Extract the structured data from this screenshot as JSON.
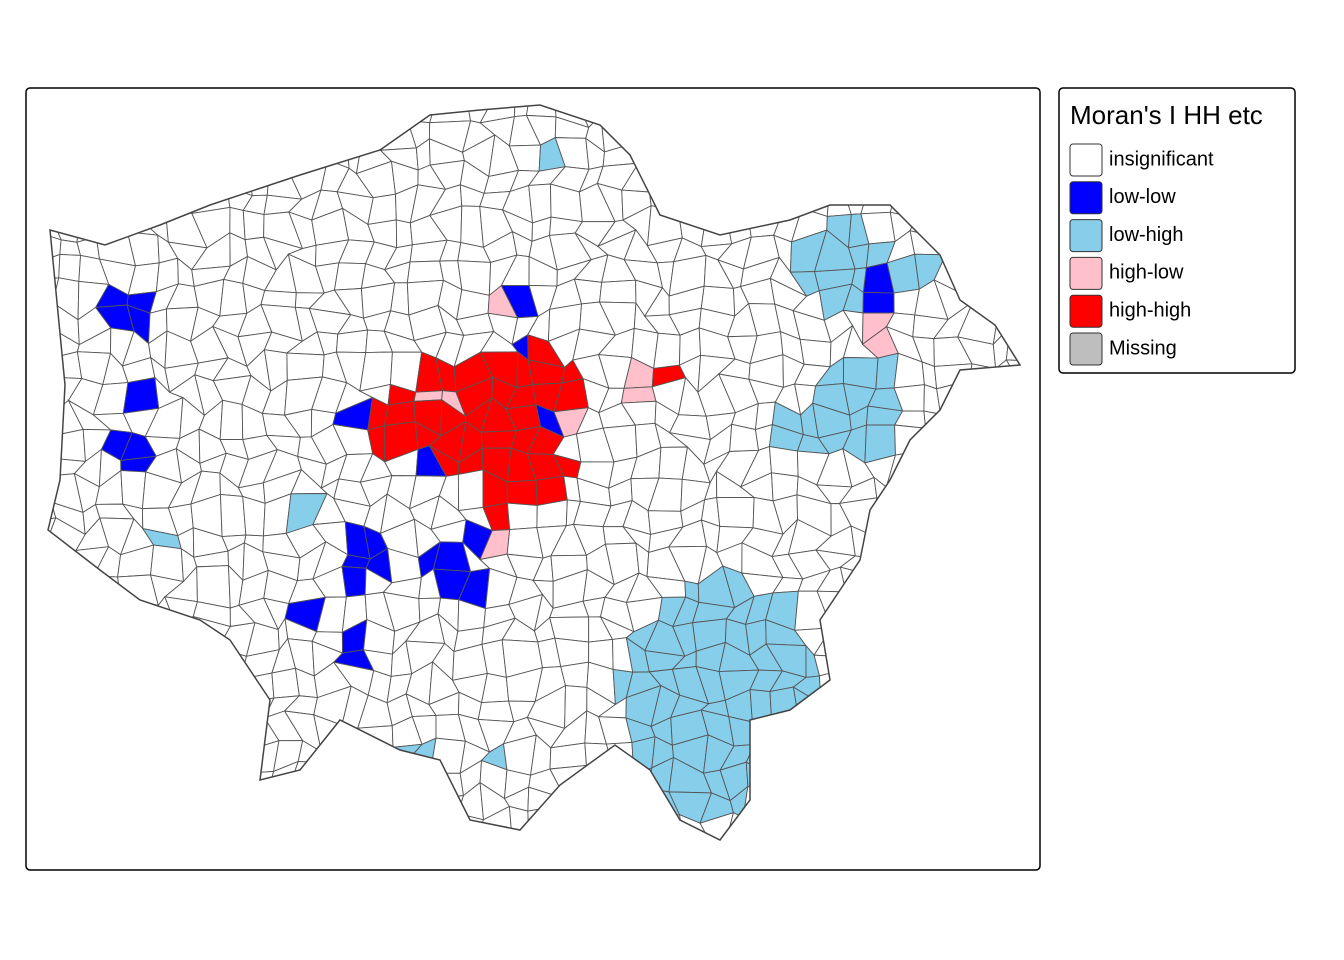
{
  "legend": {
    "title": "Moran's I HH etc",
    "items": [
      {
        "label": "insignificant",
        "color": "#ffffff"
      },
      {
        "label": "low-low",
        "color": "#0000ff"
      },
      {
        "label": "low-high",
        "color": "#87ceeb"
      },
      {
        "label": "high-low",
        "color": "#ffc0cb"
      },
      {
        "label": "high-high",
        "color": "#ff0000"
      },
      {
        "label": "Missing",
        "color": "#bebebe"
      }
    ]
  }
}
